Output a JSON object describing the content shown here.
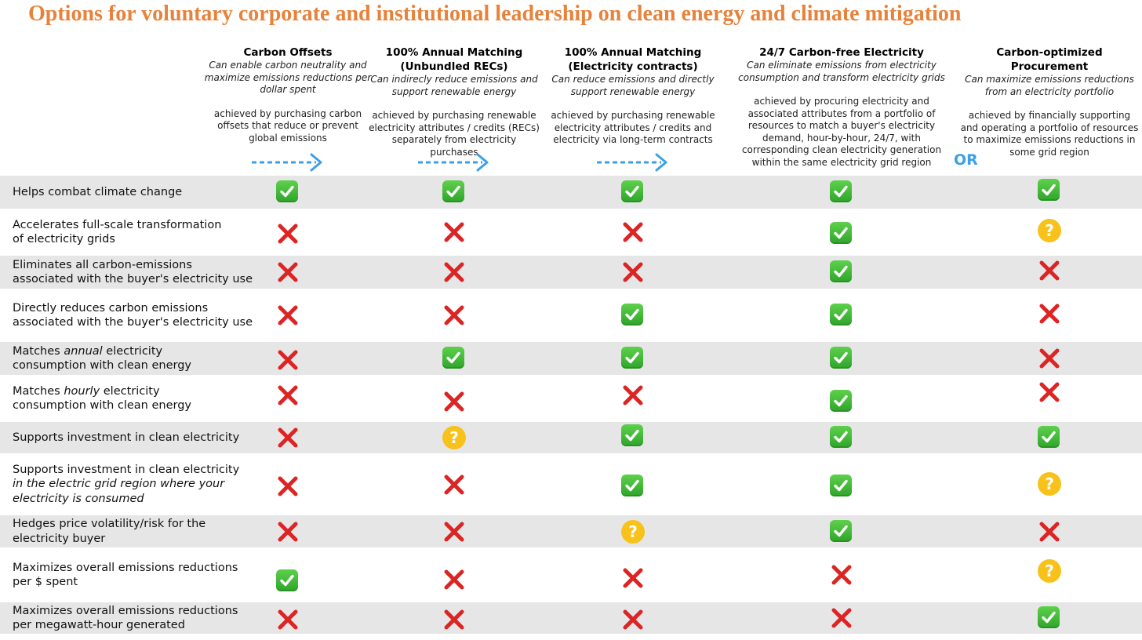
{
  "title": "Options for voluntary corporate and institutional leadership on clean energy and climate mitigation",
  "or_label": "OR",
  "columns": [
    {
      "name": "Carbon Offsets",
      "subtitle": "Can enable carbon neutrality and maximize emissions reductions per dollar spent",
      "description": "achieved by purchasing carbon offsets that reduce or prevent global emissions"
    },
    {
      "name": "100% Annual Matching (Unbundled RECs)",
      "subtitle": "Can indirecly reduce emissions and support renewable energy",
      "description": "achieved by purchasing renewable electricity attributes / credits (RECs) separately from electricity purchases"
    },
    {
      "name": "100% Annual Matching (Electricity contracts)",
      "subtitle": "Can reduce emissions and directly support renewable energy",
      "description": "achieved by purchasing renewable electricity attributes / credits and electricity via long-term contracts"
    },
    {
      "name": "24/7 Carbon-free Electricity",
      "subtitle": "Can eliminate emissions from electricity consumption and transform electricity grids",
      "description": "achieved by procuring electricity and associated attributes from a portfolio of resources to match a buyer's electricity demand, hour-by-hour, 24/7, with corresponding clean electricity generation within the same electricity grid region"
    },
    {
      "name": "Carbon-optimized Procurement",
      "subtitle": "Can maximize emissions reductions from an electricity portfolio",
      "description": "achieved by financially supporting and operating a portfolio of resources to maximize emissions reductions in some grid region"
    }
  ],
  "rows": [
    {
      "label": [
        "Helps combat climate change"
      ],
      "values": [
        "check",
        "check",
        "check",
        "check",
        "check"
      ]
    },
    {
      "label": [
        "Accelerates full-scale transformation",
        "of electricity grids"
      ],
      "values": [
        "cross",
        "cross",
        "cross",
        "check",
        "question"
      ]
    },
    {
      "label": [
        "Eliminates all carbon-emissions",
        "associated with the buyer's electricity use"
      ],
      "values": [
        "cross",
        "cross",
        "cross",
        "check",
        "cross"
      ]
    },
    {
      "label": [
        "Directly reduces carbon emissions",
        "associated with the buyer's electricity use"
      ],
      "values": [
        "cross",
        "cross",
        "check",
        "check",
        "cross"
      ]
    },
    {
      "label_parts": [
        "Matches ",
        "annual",
        " electricity"
      ],
      "label_line2": "consumption with clean energy",
      "values": [
        "cross",
        "check",
        "check",
        "check",
        "cross"
      ]
    },
    {
      "label_parts": [
        "Matches ",
        "hourly",
        " electricity"
      ],
      "label_line2": "consumption with clean energy",
      "values": [
        "cross",
        "cross",
        "cross",
        "check",
        "cross"
      ]
    },
    {
      "label": [
        "Supports investment in clean electricity"
      ],
      "values": [
        "cross",
        "question",
        "check",
        "check",
        "check"
      ]
    },
    {
      "label": [
        "Supports investment in clean electricity"
      ],
      "label_italic": [
        "in the electric grid region where your",
        "electricity is consumed"
      ],
      "values": [
        "cross",
        "cross",
        "check",
        "check",
        "question"
      ]
    },
    {
      "label": [
        "Hedges price volatility/risk for the",
        "electricity buyer"
      ],
      "values": [
        "cross",
        "cross",
        "question",
        "check",
        "cross"
      ]
    },
    {
      "label": [
        "Maximizes overall emissions reductions",
        "per $ spent"
      ],
      "values": [
        "check",
        "cross",
        "cross",
        "cross",
        "question"
      ]
    },
    {
      "label": [
        "Maximizes overall emissions reductions",
        "per megawatt-hour generated"
      ],
      "values": [
        "cross",
        "cross",
        "cross",
        "cross",
        "check"
      ]
    }
  ]
}
